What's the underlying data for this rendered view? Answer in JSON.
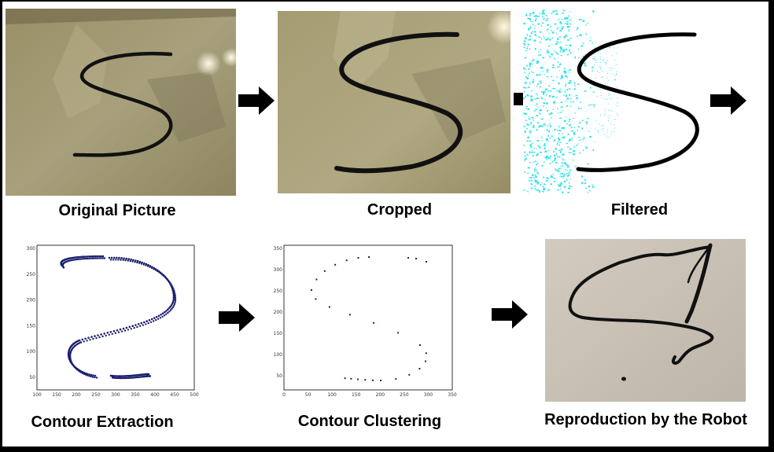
{
  "steps": [
    {
      "id": "original",
      "caption": "Original Picture"
    },
    {
      "id": "cropped",
      "caption": "Cropped"
    },
    {
      "id": "filtered",
      "caption": "Filtered"
    },
    {
      "id": "contour-extraction",
      "caption": "Contour Extraction"
    },
    {
      "id": "contour-clustering",
      "caption": "Contour Clustering"
    },
    {
      "id": "reproduction",
      "caption": "Reproduction by the Robot"
    }
  ],
  "extraction_plot": {
    "x_ticks": [
      "100",
      "150",
      "200",
      "250",
      "300",
      "350",
      "400",
      "450",
      "500"
    ],
    "y_ticks": [
      "300",
      "250",
      "200",
      "150",
      "100",
      "50"
    ]
  },
  "clustering_plot": {
    "x_ticks": [
      "0",
      "50",
      "100",
      "150",
      "200",
      "250",
      "300",
      "350"
    ],
    "y_ticks": [
      "350",
      "300",
      "250",
      "200",
      "150",
      "100",
      "50"
    ]
  },
  "colors": {
    "background": "#ffffff",
    "border": "#000000",
    "photo_bg": "#a89e78",
    "filter_noise": "#2fe3e8",
    "contour_points": "#1b1f6e"
  }
}
